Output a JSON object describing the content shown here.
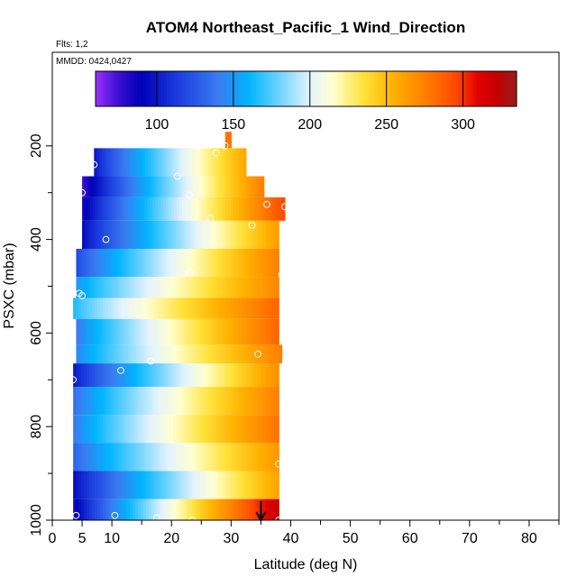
{
  "chart_data": {
    "type": "heatmap",
    "title": "ATOM4 Northeast_Pacific_1 Wind_Direction",
    "flights_label": "Flts: 1,2",
    "dates_label": "MMDD: 0424,0427",
    "xlabel": "Latitude (deg N)",
    "ylabel": "PSXC (mbar)",
    "xlim": [
      0,
      85
    ],
    "ylim": [
      1000,
      0
    ],
    "x_ticks": [
      0,
      5,
      10,
      20,
      30,
      40,
      50,
      60,
      70,
      80
    ],
    "y_ticks": [
      200,
      400,
      600,
      800,
      1000
    ],
    "colorbar": {
      "range": [
        60,
        335
      ],
      "ticks": [
        100,
        150,
        200,
        250,
        300
      ],
      "stops": [
        {
          "v": 60,
          "c": "#9b30ff"
        },
        {
          "v": 75,
          "c": "#3a0fd1"
        },
        {
          "v": 90,
          "c": "#0000b8"
        },
        {
          "v": 115,
          "c": "#1c3fe0"
        },
        {
          "v": 140,
          "c": "#3a7bf0"
        },
        {
          "v": 160,
          "c": "#00b4ff"
        },
        {
          "v": 180,
          "c": "#6fd3ff"
        },
        {
          "v": 200,
          "c": "#e4f3ff"
        },
        {
          "v": 215,
          "c": "#ffffd0"
        },
        {
          "v": 235,
          "c": "#ffe23a"
        },
        {
          "v": 255,
          "c": "#ffb000"
        },
        {
          "v": 275,
          "c": "#ff8000"
        },
        {
          "v": 295,
          "c": "#ff4a00"
        },
        {
          "v": 310,
          "c": "#e00000"
        },
        {
          "v": 322,
          "c": "#c40000"
        },
        {
          "v": 335,
          "c": "#9a1c1c"
        }
      ]
    },
    "rows": [
      {
        "p_top": 170,
        "p_bot": 205,
        "x_start": 29,
        "x_end": 30,
        "dir_start": 280,
        "dir_end": 280
      },
      {
        "p_top": 205,
        "p_bot": 265,
        "x_start": 7,
        "x_end": 32.5,
        "dir_start": 100,
        "dir_end": 258
      },
      {
        "p_top": 265,
        "p_bot": 310,
        "x_start": 5,
        "x_end": 35.5,
        "dir_start": 75,
        "dir_end": 275
      },
      {
        "p_top": 310,
        "p_bot": 360,
        "x_start": 5,
        "x_end": 39,
        "dir_start": 85,
        "dir_end": 295
      },
      {
        "p_top": 360,
        "p_bot": 420,
        "x_start": 5,
        "x_end": 38,
        "dir_start": 95,
        "dir_end": 262
      },
      {
        "p_top": 420,
        "p_bot": 480,
        "x_start": 4,
        "x_end": 38,
        "dir_start": 120,
        "dir_end": 275
      },
      {
        "p_top": 480,
        "p_bot": 525,
        "x_start": 4,
        "x_end": 38,
        "dir_start": 150,
        "dir_end": 272
      },
      {
        "p_top": 525,
        "p_bot": 570,
        "x_start": 3.5,
        "x_end": 38,
        "dir_start": 165,
        "dir_end": 285
      },
      {
        "p_top": 570,
        "p_bot": 625,
        "x_start": 4,
        "x_end": 38,
        "dir_start": 140,
        "dir_end": 285
      },
      {
        "p_top": 625,
        "p_bot": 665,
        "x_start": 4,
        "x_end": 38.5,
        "dir_start": 145,
        "dir_end": 275
      },
      {
        "p_top": 665,
        "p_bot": 715,
        "x_start": 3.5,
        "x_end": 38,
        "dir_start": 100,
        "dir_end": 268
      },
      {
        "p_top": 715,
        "p_bot": 775,
        "x_start": 3.5,
        "x_end": 38,
        "dir_start": 135,
        "dir_end": 275
      },
      {
        "p_top": 775,
        "p_bot": 835,
        "x_start": 3.5,
        "x_end": 38,
        "dir_start": 140,
        "dir_end": 280
      },
      {
        "p_top": 835,
        "p_bot": 895,
        "x_start": 3.5,
        "x_end": 38,
        "dir_start": 130,
        "dir_end": 265
      },
      {
        "p_top": 895,
        "p_bot": 955,
        "x_start": 3.5,
        "x_end": 38,
        "dir_start": 95,
        "dir_end": 260
      },
      {
        "p_top": 955,
        "p_bot": 1000,
        "x_start": 3.5,
        "x_end": 38,
        "dir_start": 85,
        "dir_end": 320
      }
    ],
    "markers": [
      {
        "lat": 29,
        "p": 200
      },
      {
        "lat": 27.5,
        "p": 215
      },
      {
        "lat": 7,
        "p": 240
      },
      {
        "lat": 21,
        "p": 265
      },
      {
        "lat": 5,
        "p": 300
      },
      {
        "lat": 23,
        "p": 305
      },
      {
        "lat": 36,
        "p": 325
      },
      {
        "lat": 39,
        "p": 330
      },
      {
        "lat": 26.5,
        "p": 355
      },
      {
        "lat": 33.5,
        "p": 370
      },
      {
        "lat": 9,
        "p": 400
      },
      {
        "lat": 23,
        "p": 470
      },
      {
        "lat": 38.5,
        "p": 475
      },
      {
        "lat": 4.5,
        "p": 515
      },
      {
        "lat": 5,
        "p": 520
      },
      {
        "lat": 16.5,
        "p": 660
      },
      {
        "lat": 34.5,
        "p": 645
      },
      {
        "lat": 11.5,
        "p": 680
      },
      {
        "lat": 3.5,
        "p": 700
      },
      {
        "lat": 38,
        "p": 880
      },
      {
        "lat": 4,
        "p": 990
      },
      {
        "lat": 10.5,
        "p": 990
      },
      {
        "lat": 17.5,
        "p": 995
      },
      {
        "lat": 23.5,
        "p": 1000
      },
      {
        "lat": 38,
        "p": 1000
      }
    ],
    "arrow_lat": 35
  }
}
